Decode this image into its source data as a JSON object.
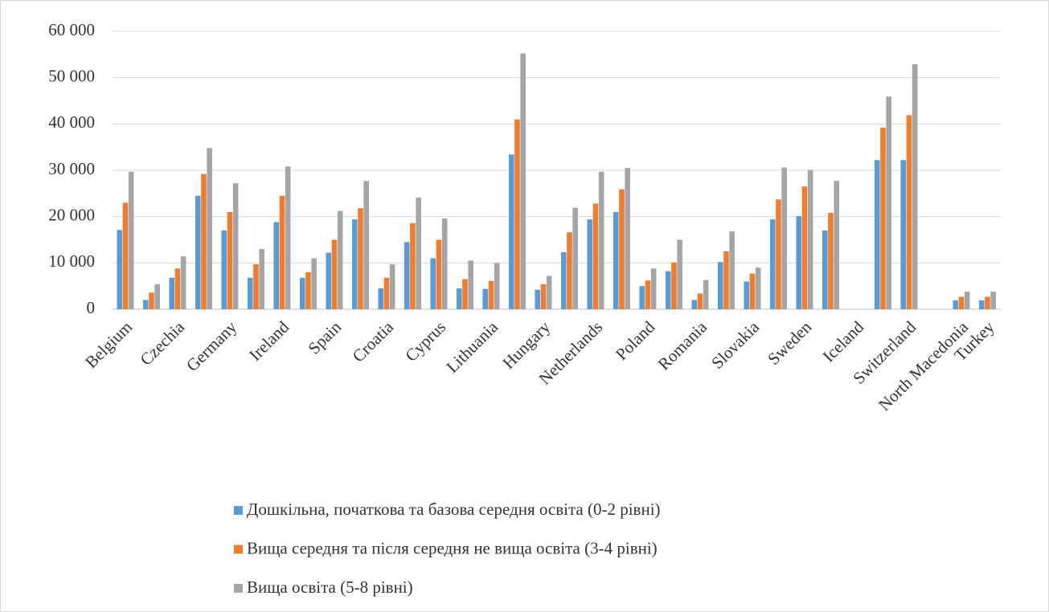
{
  "chart_data": {
    "type": "bar",
    "categories": [
      "Belgium",
      null,
      "Czechia",
      null,
      "Germany",
      null,
      "Ireland",
      null,
      "Spain",
      null,
      "Croatia",
      null,
      "Cyprus",
      null,
      "Lithuania",
      null,
      "Hungary",
      null,
      "Netherlands",
      null,
      "Poland",
      null,
      "Romania",
      null,
      "Slovakia",
      null,
      "Sweden",
      null,
      "Iceland",
      null,
      "Switzerland",
      null,
      "North Macedonia",
      "Turkey"
    ],
    "series": [
      {
        "name": "Дошкільна, початкова та базова середня освіта (0-2 рівні)",
        "color": "#5b9bd5",
        "values": [
          17100,
          2000,
          6800,
          24500,
          17000,
          6800,
          18800,
          6800,
          12200,
          19400,
          4500,
          14500,
          11000,
          4500,
          4400,
          33400,
          4200,
          12300,
          19400,
          21000,
          5000,
          8200,
          2000,
          10200,
          6000,
          19400,
          20100,
          17000,
          null,
          32200,
          32200,
          null,
          1900,
          1900
        ]
      },
      {
        "name": "Вища середня та після середня не вища освіта (3-4 рівні)",
        "color": "#ed7d31",
        "values": [
          23000,
          3600,
          8800,
          29200,
          21000,
          9700,
          24500,
          8000,
          15000,
          21800,
          6800,
          18600,
          15000,
          6500,
          6100,
          41000,
          5400,
          16600,
          22800,
          25900,
          6200,
          10100,
          3400,
          12500,
          7700,
          23700,
          26500,
          20800,
          null,
          39200,
          41900,
          null,
          2700,
          2700
        ]
      },
      {
        "name": "Вища освіта (5-8 рівні)",
        "color": "#a5a5a5",
        "values": [
          29700,
          5400,
          11400,
          34800,
          27200,
          13000,
          30800,
          11000,
          21200,
          27700,
          9700,
          24100,
          19600,
          10500,
          10000,
          55200,
          7200,
          21900,
          29700,
          30500,
          8800,
          15000,
          6300,
          16800,
          9000,
          30600,
          30100,
          27700,
          null,
          45900,
          52900,
          null,
          3800,
          3800
        ]
      }
    ],
    "ylim": [
      0,
      60000
    ],
    "yticks": [
      {
        "value": 0,
        "label": "0"
      },
      {
        "value": 10000,
        "label": "10 000"
      },
      {
        "value": 20000,
        "label": "20 000"
      },
      {
        "value": 30000,
        "label": "30 000"
      },
      {
        "value": 40000,
        "label": "40 000"
      },
      {
        "value": 50000,
        "label": "50 000"
      },
      {
        "value": 60000,
        "label": "60 000"
      }
    ],
    "grid": true
  }
}
